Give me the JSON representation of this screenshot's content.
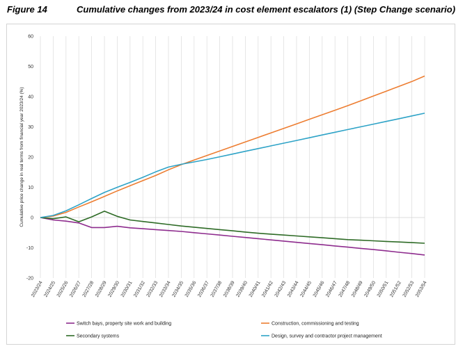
{
  "figure": {
    "label": "Figure 14",
    "title": "Cumulative changes from 2023/24 in cost element escalators (1) (Step Change scenario)"
  },
  "chart_data": {
    "type": "line",
    "ylabel": "Cumulative price change in real terms from financial year 2023/24 (%)",
    "xlabel": "",
    "ylim": [
      -20,
      60
    ],
    "yticks": [
      -20,
      -10,
      0,
      10,
      20,
      30,
      40,
      50,
      60
    ],
    "grid": "vertical",
    "legend_position": "bottom",
    "categories": [
      "2023/24",
      "2024/25",
      "2025/26",
      "2026/27",
      "2027/28",
      "2028/29",
      "2029/30",
      "2030/31",
      "2031/32",
      "2032/33",
      "2033/34",
      "2034/35",
      "2035/36",
      "2036/37",
      "2037/38",
      "2038/39",
      "2039/40",
      "2040/41",
      "2041/42",
      "2042/43",
      "2043/44",
      "2044/45",
      "2045/46",
      "2046/47",
      "2047/48",
      "2048/49",
      "2049/50",
      "2050/51",
      "2051/52",
      "2052/53",
      "2053/54"
    ],
    "series": [
      {
        "name": "Switch bays, property site work and building",
        "color": "#8e2c8e",
        "values": [
          0,
          -0.8,
          -1.2,
          -1.8,
          -3.3,
          -3.3,
          -2.9,
          -3.4,
          -3.7,
          -4.0,
          -4.3,
          -4.6,
          -5.0,
          -5.4,
          -5.8,
          -6.2,
          -6.6,
          -7.0,
          -7.4,
          -7.8,
          -8.2,
          -8.6,
          -9.0,
          -9.4,
          -9.8,
          -10.2,
          -10.6,
          -11.0,
          -11.5,
          -11.9,
          -12.4
        ]
      },
      {
        "name": "Construction, commissioning and testing",
        "color": "#ed7d31",
        "values": [
          0,
          0.5,
          1.7,
          3.5,
          5.2,
          7.0,
          8.8,
          10.5,
          12.2,
          13.9,
          15.8,
          17.5,
          19.0,
          20.5,
          22.0,
          23.5,
          25.0,
          26.5,
          28.0,
          29.5,
          31.0,
          32.5,
          34.0,
          35.5,
          37.0,
          38.6,
          40.2,
          41.8,
          43.4,
          45.0,
          46.8
        ]
      },
      {
        "name": "Secondary systems",
        "color": "#2e6b26",
        "values": [
          0,
          -0.4,
          0.2,
          -1.4,
          0.2,
          2.1,
          0.4,
          -0.8,
          -1.3,
          -1.8,
          -2.3,
          -2.8,
          -3.2,
          -3.6,
          -4.0,
          -4.4,
          -4.8,
          -5.2,
          -5.5,
          -5.8,
          -6.1,
          -6.4,
          -6.7,
          -7.0,
          -7.3,
          -7.5,
          -7.7,
          -7.9,
          -8.1,
          -8.3,
          -8.5
        ]
      },
      {
        "name": "Design, survey and contractor project management",
        "color": "#2ea3c7",
        "values": [
          0,
          0.7,
          2.2,
          4.2,
          6.3,
          8.3,
          10.0,
          11.6,
          13.3,
          15.1,
          16.7,
          17.6,
          18.4,
          19.2,
          20.1,
          21.0,
          21.9,
          22.8,
          23.7,
          24.6,
          25.5,
          26.4,
          27.3,
          28.2,
          29.1,
          30.0,
          30.9,
          31.8,
          32.7,
          33.6,
          34.5
        ]
      }
    ]
  }
}
